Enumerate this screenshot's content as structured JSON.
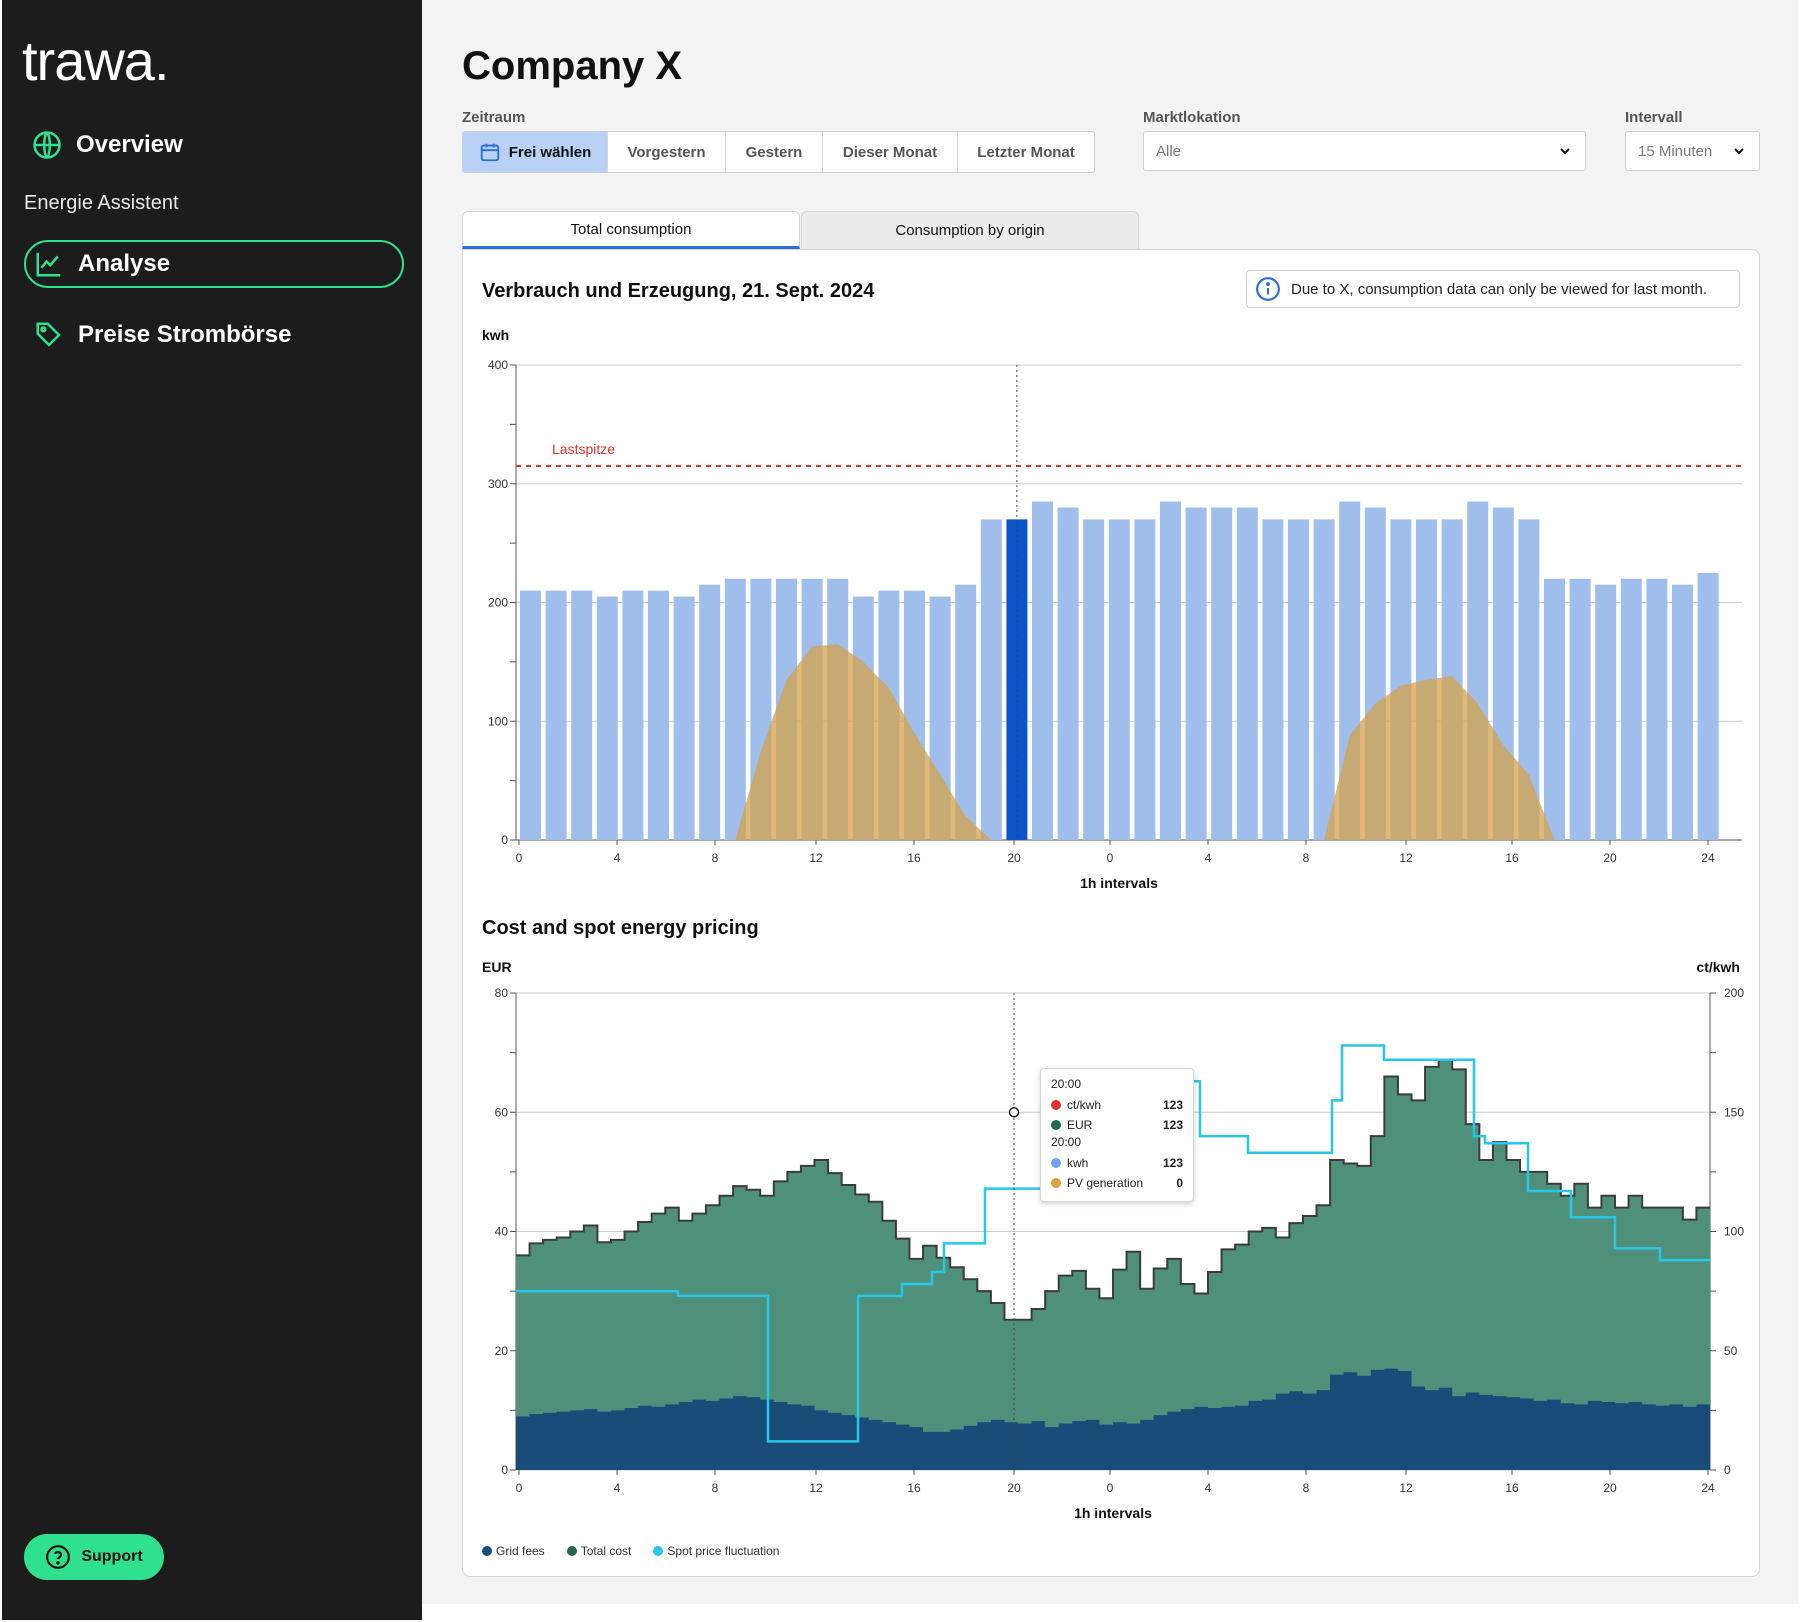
{
  "sidebar": {
    "logo": "trawa.",
    "overview_label": "Overview",
    "section_label": "Energie Assistent",
    "items": [
      {
        "label": "Analyse",
        "icon": "chart-line-icon",
        "active": true
      },
      {
        "label": "Preise Strombörse",
        "icon": "tag-icon",
        "active": false
      }
    ],
    "support_label": "Support"
  },
  "header": {
    "title": "Company X"
  },
  "filters": {
    "zeitraum_label": "Zeitraum",
    "zeitraum_options": [
      "Frei wählen",
      "Vorgestern",
      "Gestern",
      "Dieser Monat",
      "Letzter Monat"
    ],
    "zeitraum_selected": "Frei wählen",
    "marktlokation_label": "Marktlokation",
    "marktlokation_value": "Alle",
    "intervall_label": "Intervall",
    "intervall_value": "15 Minuten"
  },
  "tabs": [
    {
      "label": "Total consumption",
      "active": true
    },
    {
      "label": "Consumption by origin",
      "active": false
    }
  ],
  "info_banner": "Due to X, consumption data can only be viewed for last month.",
  "colors": {
    "accent": "#2fe08f",
    "bar": "#a0beeb",
    "bar_highlight": "#0b55c8",
    "pv": "#d4a24c",
    "lastspitze": "#e0332b",
    "grid_fees": "#1a4c7a",
    "total_cost": "#4f907a",
    "spot_price": "#28c6e8"
  },
  "chart_data": [
    {
      "type": "bar",
      "title": "Verbrauch und Erzeugung, 21. Sept. 2024",
      "ylabel": "kwh",
      "xlabel": "1h intervals",
      "ylim": [
        0,
        400
      ],
      "yticks": [
        "0",
        "100",
        "200",
        "300",
        "400"
      ],
      "xticks": [
        "0",
        "4",
        "8",
        "12",
        "16",
        "20",
        "0",
        "4",
        "8",
        "12",
        "16",
        "20",
        "24"
      ],
      "reference_line": {
        "label": "Lastspitze",
        "value": 315
      },
      "highlight_index": 19,
      "series": [
        {
          "name": "kwh",
          "values": [
            210,
            210,
            210,
            205,
            210,
            210,
            205,
            215,
            220,
            220,
            220,
            220,
            220,
            205,
            210,
            210,
            205,
            215,
            270,
            270,
            285,
            280,
            270,
            270,
            270,
            285,
            280,
            280,
            280,
            270,
            270,
            270,
            285,
            280,
            270,
            270,
            270,
            285,
            280,
            270,
            220,
            220,
            215,
            220,
            220,
            215,
            225
          ]
        },
        {
          "name": "PV generation",
          "values": [
            0,
            0,
            0,
            0,
            0,
            0,
            0,
            0,
            0,
            75,
            135,
            163,
            165,
            150,
            128,
            90,
            55,
            20,
            0,
            0,
            0,
            0,
            0,
            0,
            0,
            0,
            0,
            0,
            0,
            0,
            0,
            0,
            88,
            115,
            130,
            135,
            138,
            115,
            80,
            55,
            0,
            0,
            0,
            0,
            0,
            0,
            0
          ]
        }
      ]
    },
    {
      "type": "area",
      "title": "Cost and spot energy pricing",
      "ylabel": "EUR",
      "y2label": "ct/kwh",
      "xlabel": "1h intervals",
      "ylim": [
        0,
        80
      ],
      "y2lim": [
        0,
        200
      ],
      "yticks": [
        "0",
        "20",
        "40",
        "60",
        "80"
      ],
      "y2ticks": [
        "0",
        "50",
        "100",
        "150",
        "200"
      ],
      "xticks": [
        "0",
        "4",
        "8",
        "12",
        "16",
        "20",
        "0",
        "4",
        "8",
        "12",
        "16",
        "20",
        "24"
      ],
      "series": [
        {
          "name": "Grid fees",
          "values": [
            9,
            9.4,
            9.6,
            9.8,
            10,
            10.2,
            9.8,
            10,
            10.4,
            10.8,
            10.6,
            11,
            11.4,
            11.8,
            11.6,
            12,
            12.4,
            12.2,
            11.8,
            11.4,
            11,
            10.8,
            10,
            9.6,
            9.2,
            8.8,
            8.4,
            8,
            7.6,
            7.2,
            6.4,
            6.4,
            6.8,
            7.4,
            8,
            8.4,
            8,
            7.8,
            8.2,
            7.2,
            7.8,
            8.2,
            8.4,
            7.6,
            8,
            7.8,
            8.4,
            9.2,
            9.8,
            10.2,
            10.6,
            10.4,
            10.6,
            10.8,
            11.6,
            11.8,
            12.8,
            13.2,
            12.8,
            13.4,
            16,
            16.4,
            15.8,
            16.8,
            17,
            16.6,
            14,
            13.4,
            13.8,
            12.4,
            13,
            12.6,
            12.4,
            12.2,
            12,
            11.6,
            11.8,
            11.2,
            11,
            11.6,
            11.4,
            11.2,
            11.4,
            11,
            10.8,
            11,
            10.6,
            11
          ],
          "ticks_note": "values per 15-min step"
        },
        {
          "name": "Total cost",
          "values": [
            36,
            38,
            38.6,
            39,
            40,
            41,
            38.2,
            38.6,
            40,
            41.6,
            43,
            44,
            41.8,
            43,
            44.4,
            46,
            47.6,
            47,
            46,
            48.4,
            50,
            51,
            52,
            49.8,
            47.8,
            46.2,
            45,
            41.8,
            38.8,
            35.4,
            37.6,
            35.6,
            34,
            32,
            30,
            28,
            25.2,
            25.2,
            27,
            30,
            32.6,
            33.4,
            30.4,
            28.8,
            33.6,
            36.6,
            30.4,
            33.8,
            35.4,
            31.2,
            29.6,
            33.2,
            37,
            37.8,
            40,
            40.6,
            39,
            41.4,
            42.6,
            44.4,
            52,
            51.4,
            51,
            56,
            66,
            63,
            62,
            67.6,
            68.8,
            67.2,
            58,
            52,
            55,
            52,
            50,
            50,
            48,
            46,
            48,
            44,
            46,
            44,
            46,
            44,
            44,
            44,
            42,
            44
          ],
          "ticks_note": "values per 15-min step"
        },
        {
          "name": "Spot price fluctuation",
          "values": [
            75,
            75,
            75,
            73,
            73,
            12,
            12,
            73,
            78,
            83,
            95,
            118,
            127,
            152,
            163,
            163,
            140,
            133,
            133,
            155,
            178,
            172,
            172,
            140,
            137,
            117,
            106,
            93,
            88,
            82
          ],
          "ticks_note": "values in ct/kwh per step"
        }
      ],
      "legend": [
        "Grid fees",
        "Total cost",
        "Spot price fluctuation"
      ]
    }
  ],
  "tooltip": {
    "time1": "20:00",
    "rows1": [
      {
        "label": "ct/kwh",
        "value": "123",
        "color": "#e0332b"
      },
      {
        "label": "EUR",
        "value": "123",
        "color": "#1f6b4c"
      }
    ],
    "time2": "20:00",
    "rows2": [
      {
        "label": "kwh",
        "value": "123",
        "color": "#6ea3ef"
      },
      {
        "label": "PV generation",
        "value": "0",
        "color": "#e0a23a"
      }
    ]
  }
}
